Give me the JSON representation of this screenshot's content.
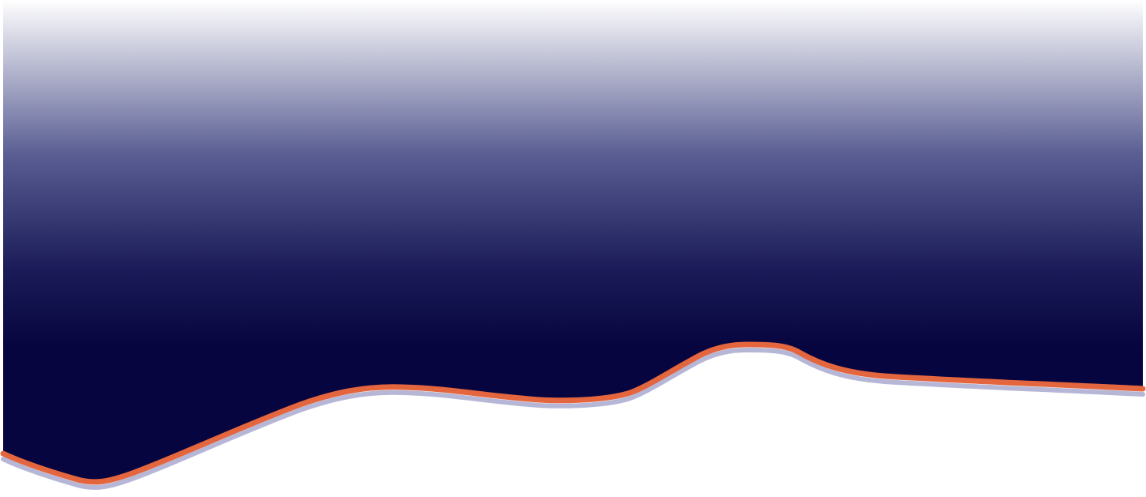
{
  "banner": {
    "colors": {
      "gradient_top": "#ffffff",
      "gradient_mid": "#5a5e93",
      "gradient_deep": "#1a1b58",
      "gradient_bottom": "#07053f",
      "accent_stroke": "#e4663e",
      "shadow_stroke": "#b6b7d6",
      "background": "#ffffff"
    }
  }
}
